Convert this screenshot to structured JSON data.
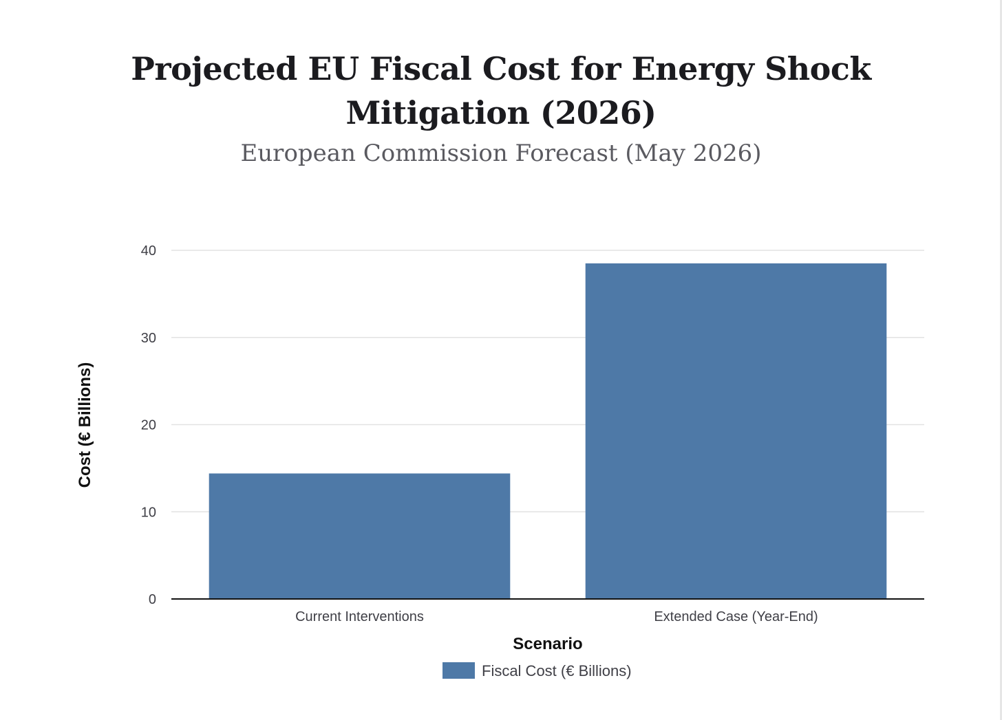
{
  "chart_data": {
    "type": "bar",
    "title_lines": [
      "Projected EU Fiscal Cost for Energy Shock",
      "Mitigation (2026)"
    ],
    "subtitle": "European Commission Forecast (May 2026)",
    "categories": [
      "Current Interventions",
      "Extended Case (Year-End)"
    ],
    "series": [
      {
        "name": "Fiscal Cost (€ Billions)",
        "values": [
          14.4,
          38.5
        ],
        "color": "#4e79a7"
      }
    ],
    "xlabel": "Scenario",
    "ylabel": "Cost (€ Billions)",
    "ylim": [
      0,
      40
    ],
    "yticks": [
      0,
      10,
      20,
      30,
      40
    ],
    "grid": true,
    "legend_position": "bottom"
  }
}
